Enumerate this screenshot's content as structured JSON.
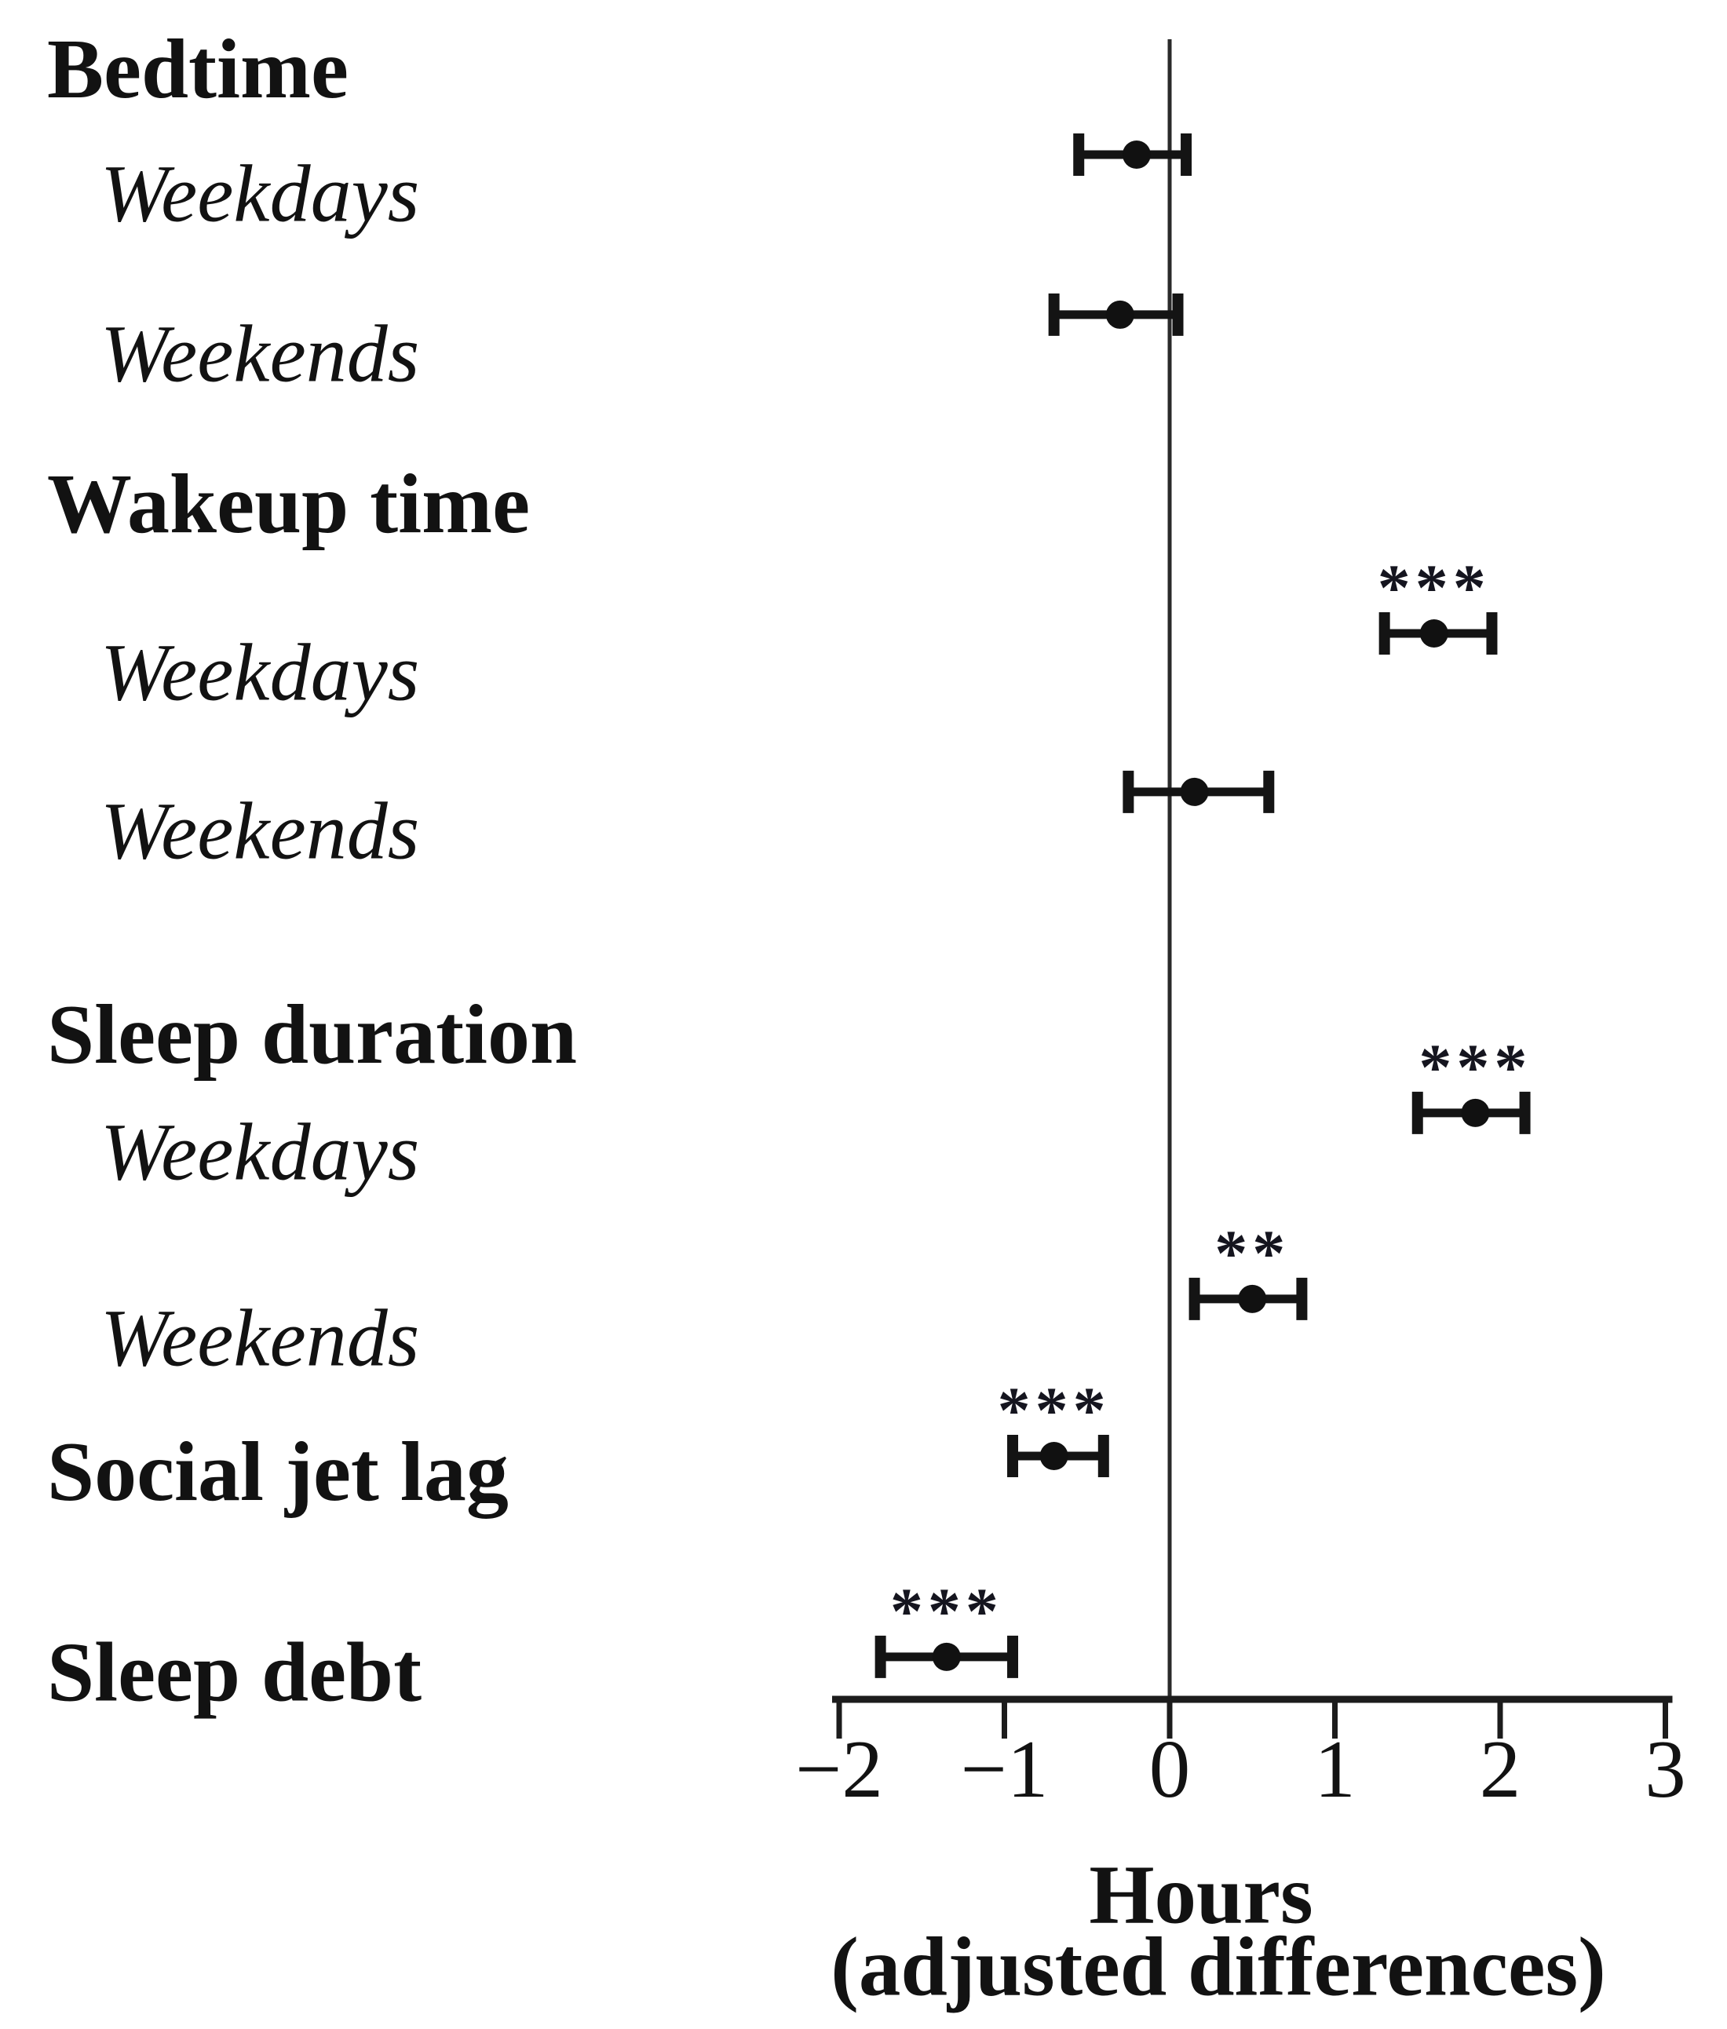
{
  "figure": {
    "background": "#ffffff",
    "ink_color": "#141414",
    "description": "Forest plot of sleep outcome changes, points with 95% confidence interval error bars against a vertical zero reference line"
  },
  "chart_data": {
    "type": "scatter",
    "subtype": "forest-errorbar",
    "title": "",
    "xlabel_line1": "Hours",
    "xlabel_line2": "(adjusted differences)",
    "ylabel": "",
    "xlim": [
      -2.15,
      3.1
    ],
    "x_ticks": [
      -2,
      -1,
      0,
      1,
      2,
      3
    ],
    "grid": false,
    "legend": "none",
    "zero_reference_line": 0,
    "significance_symbols": {
      "two_stars": "**",
      "three_stars": "***"
    },
    "rows": [
      {
        "kind": "header",
        "label": "Bedtime",
        "y": 0.0333
      },
      {
        "kind": "item",
        "style": "sub",
        "label": "Weekdays",
        "estimate": -0.2,
        "ci_low": -0.55,
        "ci_high": 0.1,
        "sig": "",
        "y": 0.0762
      },
      {
        "kind": "item",
        "style": "sub",
        "label": "Weekends",
        "estimate": -0.3,
        "ci_low": -0.7,
        "ci_high": 0.05,
        "sig": "",
        "y": 0.1551
      },
      {
        "kind": "header",
        "label": "Wakeup time",
        "y": 0.2476
      },
      {
        "kind": "item",
        "style": "sub",
        "label": "Weekdays",
        "estimate": 1.6,
        "ci_low": 1.3,
        "ci_high": 1.95,
        "sig": "***",
        "y": 0.3122
      },
      {
        "kind": "item",
        "style": "sub",
        "label": "Weekends",
        "estimate": 0.15,
        "ci_low": -0.25,
        "ci_high": 0.6,
        "sig": "",
        "y": 0.3903
      },
      {
        "kind": "header",
        "label": "Sleep duration",
        "y": 0.5091
      },
      {
        "kind": "item",
        "style": "sub",
        "label": "Weekdays",
        "estimate": 1.85,
        "ci_low": 1.5,
        "ci_high": 2.15,
        "sig": "***",
        "y": 0.5485
      },
      {
        "kind": "item",
        "style": "sub",
        "label": "Weekends",
        "estimate": 0.5,
        "ci_low": 0.15,
        "ci_high": 0.8,
        "sig": "**",
        "y": 0.6402
      },
      {
        "kind": "item",
        "style": "header",
        "label": "Social jet lag",
        "estimate": -0.7,
        "ci_low": -0.95,
        "ci_high": -0.4,
        "sig": "***",
        "y": 0.7176
      },
      {
        "kind": "item",
        "style": "header",
        "label": "Sleep debt",
        "estimate": -1.35,
        "ci_low": -1.75,
        "ci_high": -0.95,
        "sig": "***",
        "y": 0.8166
      }
    ]
  }
}
